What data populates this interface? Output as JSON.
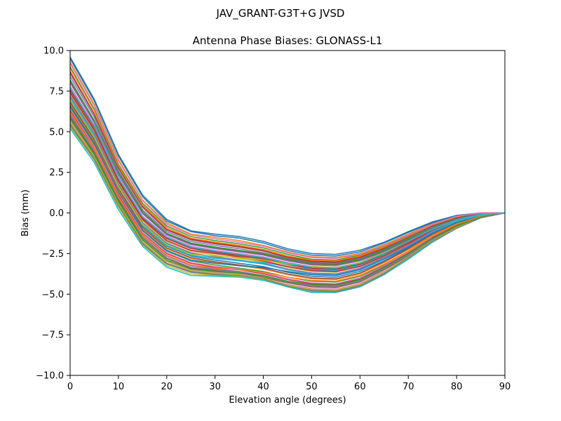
{
  "figure": {
    "suptitle": "JAV_GRANT-G3T+G JVSD"
  },
  "chart_data": {
    "type": "line",
    "title": "Antenna Phase Biases: GLONASS-L1",
    "xlabel": "Elevation angle (degrees)",
    "ylabel": "Bias (mm)",
    "xlim": [
      0,
      90
    ],
    "ylim": [
      -10,
      10
    ],
    "xticks": [
      0,
      10,
      20,
      30,
      40,
      50,
      60,
      70,
      80,
      90
    ],
    "yticks": [
      -10.0,
      -7.5,
      -5.0,
      -2.5,
      0.0,
      2.5,
      5.0,
      7.5,
      10.0
    ],
    "xtick_labels": [
      "0",
      "10",
      "20",
      "30",
      "40",
      "50",
      "60",
      "70",
      "80",
      "90"
    ],
    "ytick_labels": [
      "−10.0",
      "−7.5",
      "−5.0",
      "−2.5",
      "0.0",
      "2.5",
      "5.0",
      "7.5",
      "10.0"
    ],
    "x": [
      0,
      5,
      10,
      15,
      20,
      25,
      30,
      35,
      40,
      45,
      50,
      55,
      60,
      65,
      70,
      75,
      80,
      85,
      90
    ],
    "grid": false,
    "legend": "none",
    "palette": [
      "#1f77b4",
      "#ff7f0e",
      "#2ca02c",
      "#d62728",
      "#9467bd",
      "#8c564b",
      "#e377c2",
      "#7f7f7f",
      "#bcbd22",
      "#17becf"
    ],
    "series": [
      {
        "values": [
          9.6,
          7.0,
          3.6,
          1.1,
          -0.4,
          -1.1,
          -1.3,
          -1.45,
          -1.75,
          -2.2,
          -2.5,
          -2.55,
          -2.3,
          -1.8,
          -1.15,
          -0.55,
          -0.15,
          0.0,
          0.0
        ]
      },
      {
        "values": [
          9.3,
          6.7,
          3.3,
          0.8,
          -0.6,
          -1.3,
          -1.5,
          -1.7,
          -2.0,
          -2.4,
          -2.7,
          -2.75,
          -2.5,
          -1.95,
          -1.3,
          -0.65,
          -0.2,
          0.0,
          0.0
        ]
      },
      {
        "values": [
          9.0,
          6.4,
          3.0,
          0.6,
          -0.8,
          -1.45,
          -1.7,
          -1.9,
          -2.15,
          -2.55,
          -2.85,
          -2.9,
          -2.6,
          -2.05,
          -1.4,
          -0.75,
          -0.25,
          0.0,
          0.0
        ]
      },
      {
        "values": [
          8.7,
          6.1,
          2.8,
          0.4,
          -1.0,
          -1.6,
          -1.85,
          -2.05,
          -2.3,
          -2.7,
          -2.95,
          -3.0,
          -2.7,
          -2.15,
          -1.5,
          -0.8,
          -0.3,
          0.0,
          0.0
        ]
      },
      {
        "values": [
          8.4,
          5.9,
          2.6,
          0.2,
          -1.15,
          -1.75,
          -2.0,
          -2.2,
          -2.45,
          -2.8,
          -3.05,
          -3.1,
          -2.8,
          -2.25,
          -1.55,
          -0.85,
          -0.3,
          -0.05,
          0.0
        ]
      },
      {
        "values": [
          8.1,
          5.6,
          2.4,
          0.0,
          -1.3,
          -1.9,
          -2.15,
          -2.35,
          -2.55,
          -2.9,
          -3.15,
          -3.2,
          -2.9,
          -2.35,
          -1.65,
          -0.9,
          -0.35,
          -0.05,
          0.0
        ]
      },
      {
        "values": [
          7.8,
          5.4,
          2.2,
          -0.2,
          -1.45,
          -2.05,
          -2.3,
          -2.5,
          -2.7,
          -3.05,
          -3.3,
          -3.35,
          -3.05,
          -2.45,
          -1.75,
          -0.95,
          -0.4,
          -0.1,
          0.0
        ]
      },
      {
        "values": [
          7.5,
          5.2,
          2.0,
          -0.35,
          -1.6,
          -2.2,
          -2.45,
          -2.65,
          -2.85,
          -3.2,
          -3.45,
          -3.5,
          -3.2,
          -2.6,
          -1.85,
          -1.05,
          -0.45,
          -0.1,
          0.0
        ]
      },
      {
        "values": [
          7.3,
          5.0,
          1.85,
          -0.5,
          -1.75,
          -2.35,
          -2.6,
          -2.8,
          -3.0,
          -3.35,
          -3.6,
          -3.65,
          -3.3,
          -2.7,
          -1.95,
          -1.1,
          -0.5,
          -0.1,
          0.0
        ]
      },
      {
        "values": [
          7.1,
          4.8,
          1.7,
          -0.65,
          -1.9,
          -2.5,
          -2.75,
          -2.95,
          -3.15,
          -3.5,
          -3.75,
          -3.8,
          -3.45,
          -2.8,
          -2.05,
          -1.2,
          -0.55,
          -0.15,
          0.0
        ]
      },
      {
        "values": [
          6.9,
          4.6,
          1.55,
          -0.8,
          -2.05,
          -2.65,
          -2.9,
          -3.1,
          -3.3,
          -3.65,
          -3.9,
          -3.95,
          -3.6,
          -2.95,
          -2.15,
          -1.3,
          -0.6,
          -0.15,
          0.0
        ]
      },
      {
        "values": [
          6.7,
          4.4,
          1.4,
          -0.95,
          -2.2,
          -2.8,
          -3.05,
          -3.25,
          -3.45,
          -3.8,
          -4.05,
          -4.1,
          -3.75,
          -3.05,
          -2.25,
          -1.35,
          -0.65,
          -0.2,
          0.0
        ]
      },
      {
        "values": [
          6.5,
          4.2,
          1.25,
          -1.1,
          -2.35,
          -2.95,
          -3.2,
          -3.4,
          -3.6,
          -3.95,
          -4.2,
          -4.25,
          -3.9,
          -3.2,
          -2.35,
          -1.45,
          -0.7,
          -0.2,
          0.0
        ]
      },
      {
        "values": [
          6.3,
          4.0,
          1.1,
          -1.25,
          -2.5,
          -3.1,
          -3.35,
          -3.5,
          -3.75,
          -4.1,
          -4.35,
          -4.4,
          -4.05,
          -3.3,
          -2.45,
          -1.5,
          -0.75,
          -0.25,
          0.0
        ]
      },
      {
        "values": [
          6.1,
          3.85,
          0.95,
          -1.4,
          -2.65,
          -3.25,
          -3.45,
          -3.6,
          -3.85,
          -4.2,
          -4.45,
          -4.5,
          -4.15,
          -3.4,
          -2.55,
          -1.6,
          -0.8,
          -0.25,
          0.0
        ]
      },
      {
        "values": [
          5.9,
          3.7,
          0.8,
          -1.55,
          -2.8,
          -3.4,
          -3.55,
          -3.7,
          -3.95,
          -4.3,
          -4.55,
          -4.6,
          -4.25,
          -3.5,
          -2.65,
          -1.65,
          -0.85,
          -0.25,
          0.0
        ]
      },
      {
        "values": [
          5.7,
          3.55,
          0.65,
          -1.7,
          -2.95,
          -3.5,
          -3.65,
          -3.75,
          -4.0,
          -4.4,
          -4.65,
          -4.7,
          -4.35,
          -3.6,
          -2.7,
          -1.7,
          -0.9,
          -0.3,
          0.0
        ]
      },
      {
        "values": [
          5.5,
          3.4,
          0.5,
          -1.85,
          -3.1,
          -3.6,
          -3.75,
          -3.85,
          -4.05,
          -4.5,
          -4.75,
          -4.8,
          -4.45,
          -3.7,
          -2.75,
          -1.75,
          -0.9,
          -0.3,
          0.0
        ]
      },
      {
        "values": [
          5.3,
          3.25,
          0.35,
          -1.95,
          -3.25,
          -3.75,
          -3.85,
          -3.9,
          -4.1,
          -4.55,
          -4.85,
          -4.9,
          -4.55,
          -3.8,
          -2.8,
          -1.8,
          -0.95,
          -0.3,
          0.0
        ]
      },
      {
        "values": [
          5.2,
          3.1,
          0.2,
          -2.05,
          -3.35,
          -3.85,
          -3.9,
          -3.95,
          -4.15,
          -4.55,
          -4.9,
          -4.9,
          -4.55,
          -3.8,
          -2.85,
          -1.8,
          -0.95,
          -0.3,
          0.0
        ]
      },
      {
        "values": [
          9.5,
          6.9,
          3.5,
          1.0,
          -0.5,
          -1.15,
          -1.4,
          -1.55,
          -1.85,
          -2.3,
          -2.6,
          -2.65,
          -2.4,
          -1.85,
          -1.2,
          -0.6,
          -0.15,
          0.0,
          0.0
        ]
      },
      {
        "values": [
          8.9,
          6.3,
          2.9,
          0.5,
          -0.9,
          -1.55,
          -1.8,
          -2.0,
          -2.25,
          -2.65,
          -2.9,
          -2.95,
          -2.65,
          -2.1,
          -1.45,
          -0.75,
          -0.25,
          0.0,
          0.0
        ]
      },
      {
        "values": [
          8.2,
          5.7,
          2.5,
          0.1,
          -1.25,
          -1.85,
          -2.1,
          -2.3,
          -2.5,
          -2.85,
          -3.1,
          -3.15,
          -2.85,
          -2.3,
          -1.6,
          -0.9,
          -0.35,
          -0.05,
          0.0
        ]
      },
      {
        "values": [
          7.6,
          5.3,
          2.1,
          -0.3,
          -1.55,
          -2.15,
          -2.4,
          -2.6,
          -2.8,
          -3.15,
          -3.4,
          -3.45,
          -3.15,
          -2.55,
          -1.8,
          -1.0,
          -0.45,
          -0.1,
          0.0
        ]
      },
      {
        "values": [
          7.2,
          4.9,
          1.75,
          -0.6,
          -1.85,
          -2.45,
          -2.7,
          -2.9,
          -3.1,
          -3.45,
          -3.7,
          -3.75,
          -3.4,
          -2.75,
          -2.0,
          -1.15,
          -0.5,
          -0.15,
          0.0
        ]
      },
      {
        "values": [
          6.8,
          4.5,
          1.5,
          -0.9,
          -2.15,
          -2.75,
          -3.0,
          -3.2,
          -3.4,
          -3.75,
          -4.0,
          -4.05,
          -3.7,
          -3.0,
          -2.2,
          -1.3,
          -0.6,
          -0.2,
          0.0
        ]
      },
      {
        "values": [
          6.4,
          4.1,
          1.2,
          -1.2,
          -2.45,
          -3.05,
          -3.3,
          -3.45,
          -3.7,
          -4.05,
          -4.3,
          -4.35,
          -4.0,
          -3.25,
          -2.4,
          -1.45,
          -0.7,
          -0.2,
          0.0
        ]
      },
      {
        "values": [
          6.0,
          3.8,
          0.9,
          -1.5,
          -2.75,
          -3.35,
          -3.5,
          -3.65,
          -3.9,
          -4.25,
          -4.5,
          -4.55,
          -4.2,
          -3.45,
          -2.6,
          -1.6,
          -0.8,
          -0.25,
          0.0
        ]
      },
      {
        "values": [
          5.6,
          3.5,
          0.6,
          -1.75,
          -3.0,
          -3.55,
          -3.7,
          -3.8,
          -4.0,
          -4.45,
          -4.7,
          -4.75,
          -4.4,
          -3.65,
          -2.7,
          -1.7,
          -0.9,
          -0.3,
          0.0
        ]
      },
      {
        "values": [
          7.0,
          4.7,
          1.65,
          -0.75,
          -2.0,
          -2.6,
          -2.8,
          -2.95,
          -3.05,
          -3.3,
          -3.5,
          -3.55,
          -3.25,
          -2.6,
          -1.9,
          -1.1,
          -0.5,
          -0.15,
          0.0
        ]
      },
      {
        "values": [
          6.6,
          4.3,
          1.3,
          -1.05,
          -2.3,
          -2.9,
          -3.1,
          -3.25,
          -3.35,
          -3.6,
          -3.8,
          -3.85,
          -3.5,
          -2.85,
          -2.1,
          -1.25,
          -0.6,
          -0.2,
          0.0
        ]
      },
      {
        "values": [
          6.2,
          3.95,
          1.0,
          -1.35,
          -2.6,
          -3.2,
          -3.4,
          -3.5,
          -3.65,
          -3.95,
          -4.15,
          -4.2,
          -3.85,
          -3.15,
          -2.35,
          -1.4,
          -0.7,
          -0.2,
          0.0
        ]
      },
      {
        "values": [
          5.8,
          3.6,
          0.7,
          -1.65,
          -2.9,
          -3.45,
          -3.6,
          -3.7,
          -3.85,
          -4.2,
          -4.4,
          -4.45,
          -4.1,
          -3.35,
          -2.5,
          -1.55,
          -0.8,
          -0.25,
          0.0
        ]
      },
      {
        "values": [
          7.4,
          5.1,
          1.95,
          -0.4,
          -1.7,
          -2.3,
          -2.5,
          -2.7,
          -2.95,
          -3.3,
          -3.55,
          -3.6,
          -3.3,
          -2.65,
          -1.9,
          -1.05,
          -0.45,
          -0.1,
          0.0
        ]
      },
      {
        "values": [
          8.0,
          5.55,
          2.35,
          -0.05,
          -1.35,
          -1.95,
          -2.2,
          -2.4,
          -2.6,
          -2.95,
          -3.2,
          -3.25,
          -2.95,
          -2.4,
          -1.7,
          -0.95,
          -0.4,
          -0.05,
          0.0
        ]
      },
      {
        "values": [
          8.6,
          6.05,
          2.75,
          0.35,
          -1.05,
          -1.65,
          -1.9,
          -2.1,
          -2.35,
          -2.75,
          -3.0,
          -3.05,
          -2.75,
          -2.2,
          -1.5,
          -0.8,
          -0.3,
          0.0,
          0.0
        ]
      },
      {
        "values": [
          9.2,
          6.6,
          3.2,
          0.75,
          -0.7,
          -1.35,
          -1.6,
          -1.8,
          -2.05,
          -2.45,
          -2.75,
          -2.8,
          -2.55,
          -2.0,
          -1.35,
          -0.7,
          -0.2,
          0.0,
          0.0
        ]
      },
      {
        "values": [
          5.4,
          3.3,
          0.45,
          -1.9,
          -3.15,
          -3.65,
          -3.8,
          -3.85,
          -4.05,
          -4.5,
          -4.8,
          -4.85,
          -4.5,
          -3.75,
          -2.75,
          -1.75,
          -0.95,
          -0.3,
          0.0
        ]
      },
      {
        "values": [
          6.95,
          4.65,
          1.6,
          -0.7,
          -1.95,
          -2.55,
          -2.65,
          -2.75,
          -2.9,
          -3.15,
          -3.3,
          -3.35,
          -3.05,
          -2.45,
          -1.75,
          -1.0,
          -0.45,
          -0.1,
          0.0
        ]
      },
      {
        "values": [
          7.7,
          5.35,
          2.15,
          -0.25,
          -1.5,
          -2.1,
          -2.35,
          -2.55,
          -2.75,
          -3.1,
          -3.35,
          -3.4,
          -3.1,
          -2.5,
          -1.75,
          -1.0,
          -0.45,
          -0.1,
          0.0
        ]
      }
    ]
  }
}
